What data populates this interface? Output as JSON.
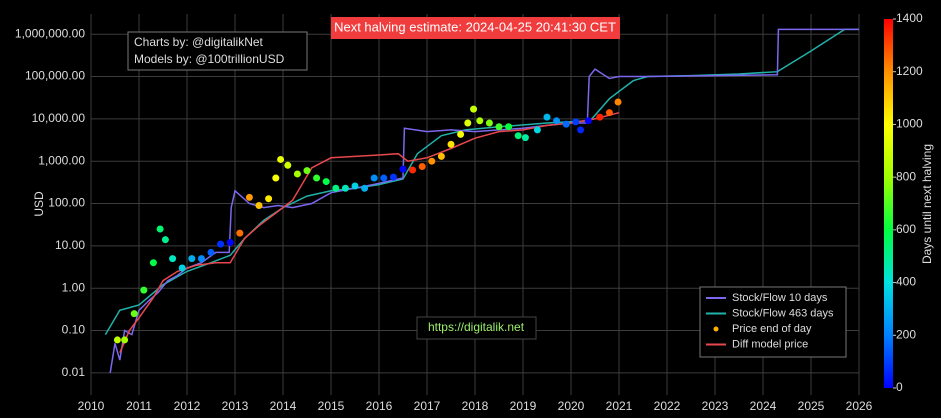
{
  "chart_data": {
    "type": "line",
    "ylabel": "USD",
    "log_y": true,
    "grid": true,
    "legend": "bottom-right",
    "xlim": [
      2010,
      2026
    ],
    "xticks": [
      2010,
      2011,
      2012,
      2013,
      2014,
      2015,
      2016,
      2017,
      2018,
      2019,
      2020,
      2021,
      2022,
      2023,
      2024,
      2025,
      2026
    ],
    "ylim": [
      0.003,
      3000000
    ],
    "yticks": [
      {
        "value": 0.01,
        "label": "0.01"
      },
      {
        "value": 0.1,
        "label": "0.10"
      },
      {
        "value": 1,
        "label": "1.00"
      },
      {
        "value": 10,
        "label": "10.00"
      },
      {
        "value": 100,
        "label": "100.00"
      },
      {
        "value": 1000,
        "label": "1,000.00"
      },
      {
        "value": 10000,
        "label": "10,000.00"
      },
      {
        "value": 100000,
        "label": "100,000.00"
      },
      {
        "value": 1000000,
        "label": "1,000,000.00"
      }
    ],
    "annotations": [
      "Next halving estimate: 2024-04-25 20:41:30 CET",
      "Charts by: @digitalikNet",
      "Models by: @100trillionUSD",
      "https://digitalik.net"
    ],
    "colorbar": {
      "title": "Days until next halving",
      "clim": [
        0,
        1400
      ],
      "ticks": [
        0,
        200,
        400,
        600,
        800,
        1000,
        1200,
        1400
      ],
      "colorscale": [
        "#0000ff",
        "#0080ff",
        "#00e0e0",
        "#00ff40",
        "#a0ff00",
        "#ffff00",
        "#ff9000",
        "#ff0000"
      ]
    },
    "series": [
      {
        "name": "Stock/Flow 10 days",
        "color": "#7b68ee",
        "kind": "line",
        "x": [
          2010.4,
          2010.5,
          2010.6,
          2010.7,
          2010.85,
          2011.0,
          2011.2,
          2011.4,
          2011.6,
          2011.8,
          2012.0,
          2012.3,
          2012.6,
          2012.88,
          2012.92,
          2013.0,
          2013.3,
          2013.6,
          2013.9,
          2014.2,
          2014.6,
          2015.0,
          2015.5,
          2016.0,
          2016.5,
          2016.53,
          2017.0,
          2017.5,
          2018.0,
          2018.5,
          2019.0,
          2019.5,
          2020.0,
          2020.34,
          2020.38,
          2020.5,
          2020.8,
          2021.0,
          2021.6,
          2024.3,
          2024.32,
          2026.0
        ],
        "values": [
          0.01,
          0.05,
          0.02,
          0.1,
          0.08,
          0.3,
          0.5,
          0.8,
          1.5,
          2,
          3,
          4,
          7,
          7,
          80,
          200,
          100,
          80,
          90,
          80,
          100,
          180,
          230,
          300,
          400,
          6000,
          5000,
          5500,
          5000,
          5500,
          6000,
          7000,
          8000,
          8000,
          100000,
          150000,
          90000,
          100000,
          100000,
          110000,
          1300000,
          1300000
        ]
      },
      {
        "name": "Stock/Flow 463 days",
        "color": "#20b2aa",
        "kind": "line",
        "x": [
          2010.3,
          2010.6,
          2011.0,
          2011.5,
          2012.0,
          2012.5,
          2012.9,
          2013.2,
          2013.6,
          2014.0,
          2014.5,
          2015.0,
          2015.5,
          2016.0,
          2016.5,
          2016.8,
          2017.3,
          2017.8,
          2018.5,
          2019.5,
          2020.4,
          2020.8,
          2021.3,
          2021.6,
          2022.5,
          2023.5,
          2024.3,
          2025.0,
          2025.7,
          2026.0
        ],
        "values": [
          0.08,
          0.3,
          0.4,
          1.2,
          2.5,
          4,
          6,
          15,
          40,
          80,
          150,
          200,
          230,
          280,
          380,
          1500,
          4000,
          5500,
          6500,
          8000,
          9000,
          30000,
          80000,
          100000,
          105000,
          115000,
          130000,
          400000,
          1300000,
          1300000
        ]
      },
      {
        "name": "Price end of day",
        "color": "#ffb000",
        "kind": "scatter",
        "x": [
          2010.55,
          2010.7,
          2010.9,
          2011.1,
          2011.3,
          2011.44,
          2011.55,
          2011.7,
          2011.9,
          2012.1,
          2012.3,
          2012.5,
          2012.7,
          2012.9,
          2013.1,
          2013.3,
          2013.5,
          2013.7,
          2013.85,
          2013.95,
          2014.1,
          2014.3,
          2014.5,
          2014.7,
          2014.9,
          2015.1,
          2015.3,
          2015.5,
          2015.7,
          2015.9,
          2016.1,
          2016.3,
          2016.5,
          2016.7,
          2016.9,
          2017.1,
          2017.3,
          2017.5,
          2017.7,
          2017.85,
          2017.97,
          2018.1,
          2018.3,
          2018.5,
          2018.7,
          2018.9,
          2019.05,
          2019.3,
          2019.5,
          2019.7,
          2019.9,
          2020.1,
          2020.2,
          2020.36,
          2020.6,
          2020.8,
          2020.98
        ],
        "values": [
          0.06,
          0.06,
          0.25,
          0.9,
          4,
          25,
          14,
          5,
          3,
          5,
          5,
          7,
          11,
          12,
          20,
          140,
          90,
          130,
          400,
          1100,
          800,
          500,
          600,
          400,
          330,
          230,
          230,
          260,
          230,
          400,
          400,
          420,
          650,
          620,
          750,
          1000,
          1300,
          2500,
          4300,
          8000,
          17000,
          9000,
          8000,
          6500,
          6500,
          4000,
          3600,
          5500,
          11000,
          9000,
          7500,
          8500,
          5500,
          9000,
          11000,
          14000,
          25000
        ],
        "days": [
          865,
          810,
          730,
          660,
          590,
          540,
          500,
          440,
          370,
          295,
          220,
          150,
          75,
          4,
          1250,
          1180,
          1110,
          1040,
          990,
          950,
          900,
          810,
          740,
          660,
          590,
          520,
          450,
          370,
          300,
          230,
          150,
          80,
          7,
          1345,
          1270,
          1200,
          1120,
          1050,
          980,
          925,
          880,
          830,
          760,
          680,
          610,
          530,
          480,
          390,
          315,
          240,
          170,
          95,
          60,
          0,
          1350,
          1275,
          1215
        ]
      },
      {
        "name": "Diff model price",
        "color": "#e8474c",
        "kind": "line",
        "x": [
          2010.6,
          2010.8,
          2011.0,
          2011.3,
          2011.5,
          2011.8,
          2012.2,
          2012.6,
          2012.9,
          2013.2,
          2013.5,
          2014.0,
          2014.2,
          2014.6,
          2015.0,
          2016.0,
          2016.4,
          2016.6,
          2017.0,
          2017.5,
          2018.0,
          2018.5,
          2019.0,
          2019.5,
          2020.0,
          2020.5,
          2021.0
        ],
        "values": [
          0.03,
          0.1,
          0.2,
          0.6,
          1.5,
          2.5,
          3.5,
          4,
          4,
          15,
          30,
          80,
          120,
          700,
          1200,
          1400,
          1500,
          1000,
          1200,
          2000,
          3500,
          5000,
          5500,
          7000,
          8000,
          10000,
          14000
        ]
      }
    ]
  }
}
